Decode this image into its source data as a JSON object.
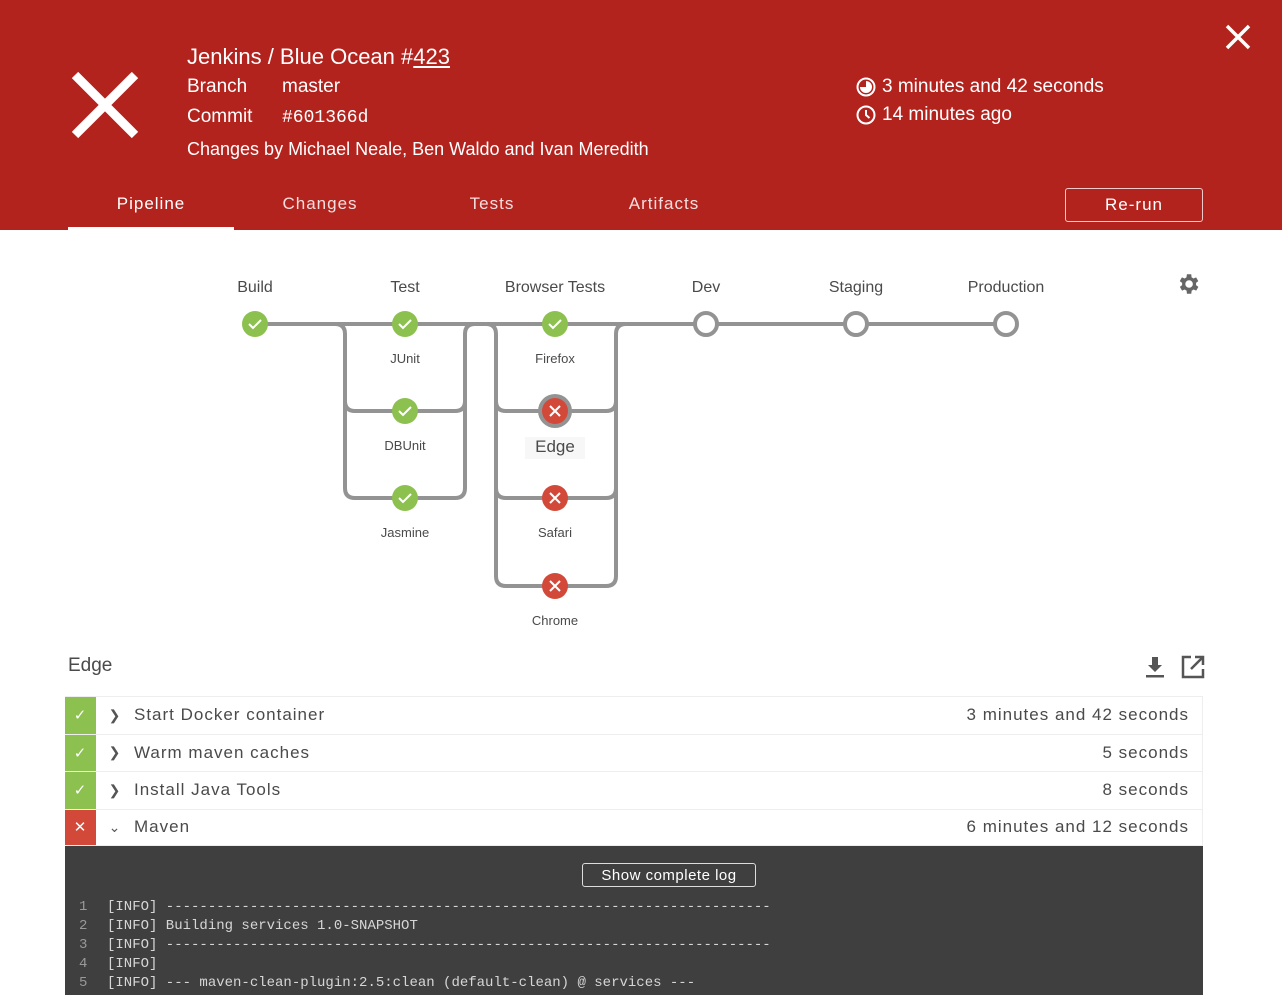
{
  "header": {
    "title_prefix": "Jenkins / Blue Ocean #",
    "run_number": "423",
    "branch_label": "Branch",
    "branch": "master",
    "commit_label": "Commit",
    "commit": "#601366d",
    "changes": "Changes by Michael Neale, Ben Waldo and Ivan Meredith",
    "duration": "3 minutes and 42 seconds",
    "started": "14 minutes ago",
    "status": "failed",
    "color": "#b3231e"
  },
  "tabs": [
    {
      "label": "Pipeline",
      "active": true
    },
    {
      "label": "Changes"
    },
    {
      "label": "Tests"
    },
    {
      "label": "Artifacts"
    }
  ],
  "rerun_label": "Re-run",
  "colors": {
    "success": "#8cc04f",
    "failure": "#d24939",
    "line": "#949393"
  },
  "pipeline": {
    "stages": [
      {
        "name": "Build",
        "status": "success"
      },
      {
        "name": "Test",
        "branches": [
          {
            "name": "JUnit",
            "status": "success"
          },
          {
            "name": "DBUnit",
            "status": "success"
          },
          {
            "name": "Jasmine",
            "status": "success"
          }
        ]
      },
      {
        "name": "Browser Tests",
        "branches": [
          {
            "name": "Firefox",
            "status": "success"
          },
          {
            "name": "Edge",
            "status": "failure",
            "selected": true
          },
          {
            "name": "Safari",
            "status": "failure"
          },
          {
            "name": "Chrome",
            "status": "failure"
          }
        ]
      },
      {
        "name": "Dev",
        "status": "not_built"
      },
      {
        "name": "Staging",
        "status": "not_built"
      },
      {
        "name": "Production",
        "status": "not_built"
      }
    ]
  },
  "steps_title": "Edge",
  "steps": [
    {
      "name": "Start Docker container",
      "duration": "3 minutes and 42 seconds",
      "status": "success",
      "expanded": false
    },
    {
      "name": "Warm maven caches",
      "duration": "5 seconds",
      "status": "success",
      "expanded": false
    },
    {
      "name": "Install Java Tools",
      "duration": "8 seconds",
      "status": "success",
      "expanded": false
    },
    {
      "name": "Maven",
      "duration": "6 minutes and 12 seconds",
      "status": "failure",
      "expanded": true
    }
  ],
  "log": {
    "show_complete_label": "Show complete log",
    "lines": [
      {
        "n": "1",
        "text": "[INFO] ------------------------------------------------------------------------"
      },
      {
        "n": "2",
        "text": "[INFO] Building services 1.0-SNAPSHOT"
      },
      {
        "n": "3",
        "text": "[INFO] ------------------------------------------------------------------------"
      },
      {
        "n": "4",
        "text": "[INFO]"
      },
      {
        "n": "5",
        "text": "[INFO] --- maven-clean-plugin:2.5:clean (default-clean) @ services ---"
      }
    ]
  }
}
